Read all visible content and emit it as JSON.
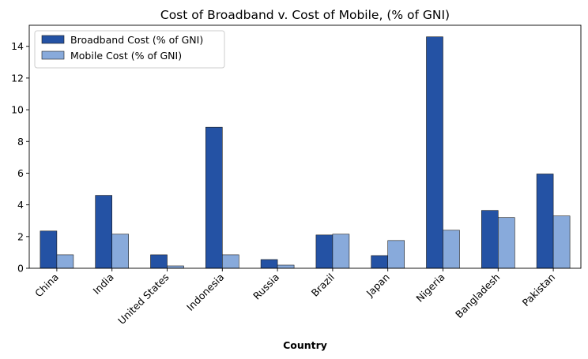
{
  "chart_data": {
    "type": "bar",
    "title": "Cost of Broadband v. Cost of Mobile, (% of GNI)",
    "xlabel": "Country",
    "ylabel": "",
    "categories": [
      "China",
      "India",
      "United States",
      "Indonesia",
      "Russia",
      "Brazil",
      "Japan",
      "Nigeria",
      "Bangladesh",
      "Pakistan"
    ],
    "series": [
      {
        "name": "Broadband Cost (% of GNI)",
        "color": "#2452a4",
        "values": [
          2.35,
          4.6,
          0.85,
          8.9,
          0.55,
          2.1,
          0.8,
          14.6,
          3.65,
          5.95
        ]
      },
      {
        "name": "Mobile Cost (% of GNI)",
        "color": "#88aadb",
        "values": [
          0.85,
          2.15,
          0.15,
          0.85,
          0.2,
          2.15,
          1.75,
          2.4,
          3.2,
          3.3
        ]
      }
    ],
    "yticks": [
      0,
      2,
      4,
      6,
      8,
      10,
      12,
      14
    ],
    "ylim": [
      0,
      15.33
    ],
    "grid": false,
    "legend_position": "top-left"
  }
}
